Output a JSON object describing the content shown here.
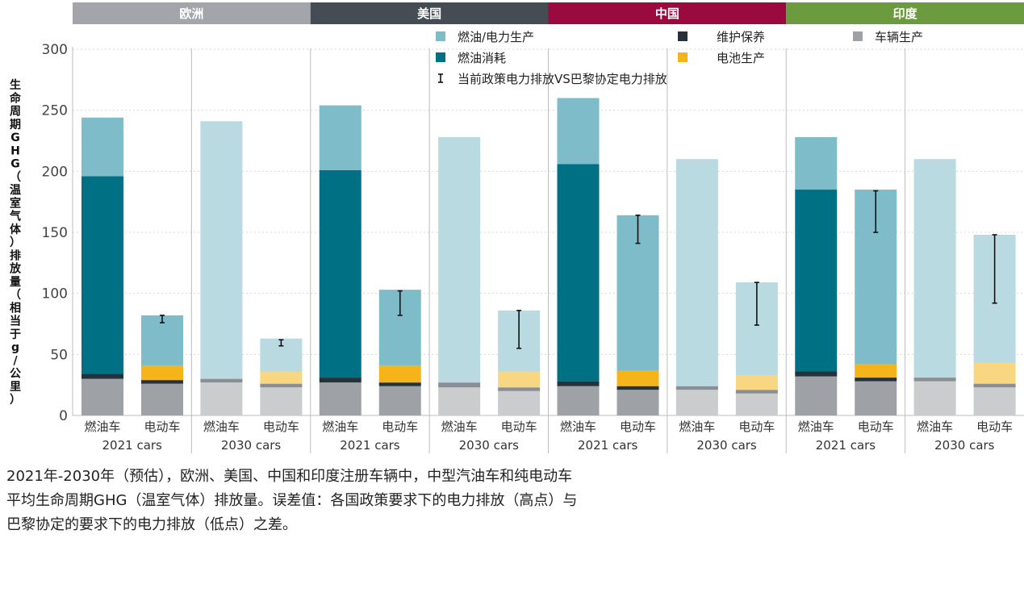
{
  "chart_data": {
    "type": "bar",
    "stacked": true,
    "ylabel": "生命周期GHG（温室气体）排放量（相当于g/公里）",
    "ylim": [
      0,
      300
    ],
    "yticks": [
      0,
      50,
      100,
      150,
      200,
      250,
      300
    ],
    "grid": "horizontal dotted",
    "legend_position": "top-right",
    "regions": [
      {
        "name": "欧洲",
        "color": "#a3a5ab"
      },
      {
        "name": "美国",
        "color": "#454c54"
      },
      {
        "name": "中国",
        "color": "#9b0a3e"
      },
      {
        "name": "印度",
        "color": "#6b9a3f"
      }
    ],
    "years": [
      "2021 cars",
      "2030 cars"
    ],
    "car_types": [
      "燃油车",
      "电动车"
    ],
    "legend": [
      {
        "key": "fuel_electricity",
        "label": "燃油/电力生产",
        "color": "#7fbcc9"
      },
      {
        "key": "maintenance",
        "label": "维护保养",
        "color": "#26323b"
      },
      {
        "key": "vehicle",
        "label": "车辆生产",
        "color": "#9ea2a6"
      },
      {
        "key": "fuel_use",
        "label": "燃油消耗",
        "color": "#007085"
      },
      {
        "key": "battery",
        "label": "电池生产",
        "color": "#f4b41a"
      },
      {
        "key": "errorbar",
        "label": "当前政策电力排放VS巴黎协定电力排放",
        "color": "#111111"
      }
    ],
    "bars": [
      {
        "region": "欧洲",
        "year": "2021 cars",
        "type": "燃油车",
        "vehicle": 30,
        "maintenance": 4,
        "battery": 0,
        "fuel_use": 162,
        "fuel_electricity": 48
      },
      {
        "region": "欧洲",
        "year": "2021 cars",
        "type": "电动车",
        "vehicle": 26,
        "maintenance": 3,
        "battery": 12,
        "fuel_use": 0,
        "fuel_electricity": 41,
        "error": [
          76,
          82
        ]
      },
      {
        "region": "欧洲",
        "year": "2030 cars",
        "type": "燃油车",
        "vehicle": 27,
        "maintenance": 3,
        "battery": 0,
        "fuel_use": 0,
        "fuel_electricity": 211
      },
      {
        "region": "欧洲",
        "year": "2030 cars",
        "type": "电动车",
        "vehicle": 23,
        "maintenance": 3,
        "battery": 10,
        "fuel_use": 0,
        "fuel_electricity": 27,
        "error": [
          57,
          62
        ]
      },
      {
        "region": "美国",
        "year": "2021 cars",
        "type": "燃油车",
        "vehicle": 27,
        "maintenance": 4,
        "battery": 0,
        "fuel_use": 170,
        "fuel_electricity": 53
      },
      {
        "region": "美国",
        "year": "2021 cars",
        "type": "电动车",
        "vehicle": 24,
        "maintenance": 3,
        "battery": 14,
        "fuel_use": 0,
        "fuel_electricity": 62,
        "error": [
          82,
          102
        ]
      },
      {
        "region": "美国",
        "year": "2030 cars",
        "type": "燃油车",
        "vehicle": 23,
        "maintenance": 4,
        "battery": 0,
        "fuel_use": 0,
        "fuel_electricity": 201
      },
      {
        "region": "美国",
        "year": "2030 cars",
        "type": "电动车",
        "vehicle": 20,
        "maintenance": 3,
        "battery": 13,
        "fuel_use": 0,
        "fuel_electricity": 50,
        "error": [
          55,
          86
        ]
      },
      {
        "region": "中国",
        "year": "2021 cars",
        "type": "燃油车",
        "vehicle": 24,
        "maintenance": 4,
        "battery": 0,
        "fuel_use": 178,
        "fuel_electricity": 54
      },
      {
        "region": "中国",
        "year": "2021 cars",
        "type": "电动车",
        "vehicle": 21,
        "maintenance": 3,
        "battery": 13,
        "fuel_use": 0,
        "fuel_electricity": 127,
        "error": [
          141,
          164
        ]
      },
      {
        "region": "中国",
        "year": "2030 cars",
        "type": "燃油车",
        "vehicle": 21,
        "maintenance": 3,
        "battery": 0,
        "fuel_use": 0,
        "fuel_electricity": 186
      },
      {
        "region": "中国",
        "year": "2030 cars",
        "type": "电动车",
        "vehicle": 18,
        "maintenance": 3,
        "battery": 12,
        "fuel_use": 0,
        "fuel_electricity": 76,
        "error": [
          74,
          109
        ]
      },
      {
        "region": "印度",
        "year": "2021 cars",
        "type": "燃油车",
        "vehicle": 32,
        "maintenance": 4,
        "battery": 0,
        "fuel_use": 149,
        "fuel_electricity": 43
      },
      {
        "region": "印度",
        "year": "2021 cars",
        "type": "电动车",
        "vehicle": 28,
        "maintenance": 3,
        "battery": 11,
        "fuel_use": 0,
        "fuel_electricity": 143,
        "error": [
          150,
          184
        ]
      },
      {
        "region": "印度",
        "year": "2030 cars",
        "type": "燃油车",
        "vehicle": 28,
        "maintenance": 3,
        "battery": 0,
        "fuel_use": 0,
        "fuel_electricity": 179
      },
      {
        "region": "印度",
        "year": "2030 cars",
        "type": "电动车",
        "vehicle": 23,
        "maintenance": 3,
        "battery": 17,
        "fuel_use": 0,
        "fuel_electricity": 105,
        "error": [
          92,
          148
        ]
      }
    ]
  },
  "caption": [
    "2021年-2030年（预估），欧洲、美国、中国和印度注册车辆中，中型汽油车和纯电动车",
    "平均生命周期GHG（温室气体）排放量。误差值：各国政策要求下的电力排放（高点）与",
    "巴黎协定的要求下的电力排放（低点）之差。"
  ]
}
